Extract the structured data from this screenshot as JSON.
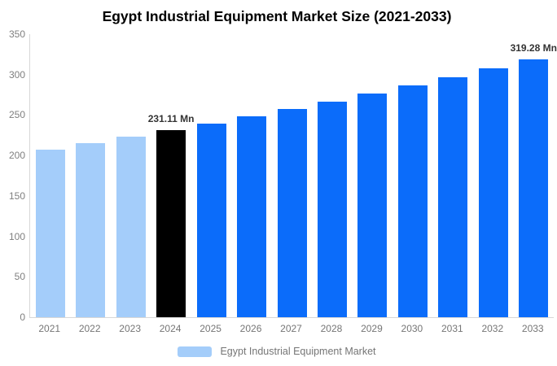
{
  "title": "Egypt Industrial Equipment Market Size (2021-2033)",
  "chart_data": {
    "type": "bar",
    "title": "Egypt Industrial Equipment Market Size (2021-2033)",
    "xlabel": "",
    "ylabel": "",
    "categories": [
      "2021",
      "2022",
      "2023",
      "2024",
      "2025",
      "2026",
      "2027",
      "2028",
      "2029",
      "2030",
      "2031",
      "2032",
      "2033"
    ],
    "series": [
      {
        "name": "Egypt Industrial Equipment Market",
        "values": [
          207.6,
          215.1,
          223.0,
          231.11,
          239.6,
          248.3,
          257.4,
          266.8,
          276.6,
          286.7,
          297.2,
          308.1,
          319.28
        ]
      }
    ],
    "bar_colors": [
      "#a4cdfa",
      "#a4cdfa",
      "#a4cdfa",
      "#000000",
      "#0b6cfa",
      "#0b6cfa",
      "#0b6cfa",
      "#0b6cfa",
      "#0b6cfa",
      "#0b6cfa",
      "#0b6cfa",
      "#0b6cfa",
      "#0b6cfa"
    ],
    "annotations": [
      {
        "index": 3,
        "category": "2024",
        "text": "231.11 Mn"
      },
      {
        "index": 12,
        "category": "2033",
        "text": "319.28 Mn"
      }
    ],
    "ylim": [
      0,
      350
    ],
    "yticks": [
      0,
      50,
      100,
      150,
      200,
      250,
      300,
      350
    ],
    "grid": false,
    "legend": {
      "position": "bottom",
      "entries": [
        {
          "label": "Egypt Industrial Equipment Market",
          "color": "#a4cdfa"
        }
      ]
    }
  },
  "colors": {
    "historical_bar": "#a4cdfa",
    "highlight_bar": "#000000",
    "forecast_bar": "#0b6cfa",
    "axis_line": "#d7d7d7",
    "axis_text": "#7f7f7f",
    "annotation_text": "#333333",
    "title_text": "#000000"
  }
}
